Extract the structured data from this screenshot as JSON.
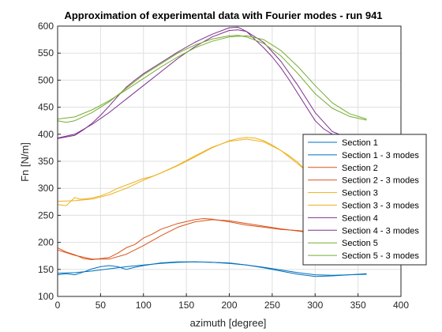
{
  "chart_data": {
    "type": "line",
    "title": "Approximation of experimental data with Fourier modes - run 941",
    "xlabel": "azimuth [degree]",
    "ylabel": "Fn [N/m]",
    "xlim": [
      0,
      400
    ],
    "ylim": [
      100,
      600
    ],
    "xticks": [
      0,
      50,
      100,
      150,
      200,
      250,
      300,
      350,
      400
    ],
    "yticks": [
      100,
      150,
      200,
      250,
      300,
      350,
      400,
      450,
      500,
      550,
      600
    ],
    "grid": true,
    "legend_position": "right",
    "series": [
      {
        "name": "Section 1",
        "color": "#0072BD",
        "x": [
          0,
          10,
          20,
          30,
          40,
          50,
          60,
          70,
          80,
          90,
          100,
          120,
          140,
          160,
          180,
          200,
          220,
          240,
          260,
          280,
          300,
          320,
          340,
          360
        ],
        "y": [
          140,
          142,
          140,
          145,
          151,
          155,
          157,
          155,
          150,
          154,
          157,
          162,
          164,
          164,
          163,
          162,
          158,
          153,
          147,
          141,
          137,
          138,
          140,
          141
        ]
      },
      {
        "name": "Section 1 - 3 modes",
        "color": "#0072BD",
        "x": [
          0,
          20,
          40,
          60,
          80,
          100,
          120,
          140,
          160,
          180,
          200,
          220,
          240,
          260,
          280,
          300,
          320,
          340,
          360
        ],
        "y": [
          143,
          144,
          147,
          151,
          155,
          158,
          161,
          163,
          164,
          163,
          161,
          158,
          154,
          149,
          144,
          140,
          139,
          140,
          142
        ]
      },
      {
        "name": "Section 2",
        "color": "#D95319",
        "x": [
          0,
          10,
          20,
          30,
          40,
          50,
          60,
          70,
          80,
          90,
          100,
          110,
          120,
          140,
          160,
          170,
          180,
          200,
          220,
          240,
          260,
          280,
          300,
          320,
          340,
          360
        ],
        "y": [
          190,
          182,
          177,
          170,
          168,
          170,
          172,
          180,
          190,
          196,
          208,
          215,
          224,
          235,
          242,
          244,
          243,
          238,
          232,
          228,
          224,
          222,
          218,
          214,
          212,
          210
        ]
      },
      {
        "name": "Section 2 - 3 modes",
        "color": "#D95319",
        "x": [
          0,
          20,
          40,
          60,
          80,
          100,
          120,
          140,
          160,
          180,
          200,
          220,
          240,
          260,
          280,
          300,
          320,
          340,
          360
        ],
        "y": [
          186,
          176,
          169,
          169,
          178,
          194,
          212,
          228,
          238,
          242,
          240,
          235,
          230,
          225,
          221,
          216,
          210,
          205,
          203
        ]
      },
      {
        "name": "Section 3",
        "color": "#EDB120",
        "x": [
          0,
          10,
          20,
          25,
          30,
          40,
          50,
          60,
          70,
          80,
          90,
          100,
          110,
          120,
          140,
          160,
          180,
          200,
          210,
          220,
          230,
          240,
          250,
          260,
          270,
          280,
          290,
          300
        ],
        "y": [
          270,
          268,
          283,
          280,
          280,
          282,
          286,
          292,
          300,
          306,
          312,
          318,
          322,
          328,
          342,
          358,
          375,
          388,
          392,
          394,
          393,
          388,
          380,
          370,
          360,
          348,
          332,
          316
        ]
      },
      {
        "name": "Section 3 - 3 modes",
        "color": "#EDB120",
        "x": [
          0,
          20,
          40,
          60,
          80,
          100,
          120,
          140,
          160,
          180,
          200,
          220,
          240,
          260,
          280,
          300
        ],
        "y": [
          276,
          277,
          280,
          288,
          300,
          315,
          328,
          343,
          360,
          376,
          387,
          391,
          386,
          370,
          345,
          318
        ]
      },
      {
        "name": "Section 4",
        "color": "#7E2F8E",
        "x": [
          0,
          10,
          20,
          30,
          40,
          50,
          60,
          70,
          80,
          90,
          100,
          120,
          140,
          160,
          180,
          200,
          210,
          220,
          230,
          240,
          250,
          260,
          270,
          280,
          290,
          300,
          310,
          320,
          330,
          340
        ],
        "y": [
          392,
          395,
          398,
          408,
          420,
          435,
          452,
          470,
          487,
          500,
          512,
          532,
          552,
          570,
          585,
          597,
          598,
          590,
          575,
          560,
          543,
          523,
          500,
          475,
          450,
          425,
          410,
          400,
          392,
          388
        ]
      },
      {
        "name": "Section 4 - 3 modes",
        "color": "#7E2F8E",
        "x": [
          0,
          20,
          40,
          60,
          80,
          100,
          120,
          140,
          160,
          180,
          200,
          210,
          220,
          240,
          260,
          280,
          300,
          320,
          340
        ],
        "y": [
          393,
          400,
          418,
          440,
          465,
          490,
          515,
          540,
          562,
          580,
          592,
          593,
          590,
          570,
          535,
          490,
          440,
          405,
          392
        ]
      },
      {
        "name": "Section 5",
        "color": "#77AC30",
        "x": [
          0,
          10,
          20,
          40,
          60,
          80,
          100,
          120,
          140,
          160,
          180,
          200,
          210,
          220,
          240,
          260,
          280,
          300,
          320,
          340,
          360
        ],
        "y": [
          425,
          422,
          425,
          440,
          460,
          485,
          510,
          530,
          550,
          565,
          576,
          582,
          583,
          580,
          568,
          545,
          512,
          475,
          448,
          433,
          426
        ]
      },
      {
        "name": "Section 5 - 3 modes",
        "color": "#77AC30",
        "x": [
          0,
          20,
          40,
          60,
          80,
          100,
          120,
          140,
          160,
          180,
          200,
          220,
          240,
          260,
          280,
          300,
          320,
          340,
          360
        ],
        "y": [
          428,
          432,
          445,
          462,
          482,
          503,
          524,
          543,
          560,
          572,
          580,
          582,
          575,
          555,
          525,
          490,
          458,
          438,
          428
        ]
      }
    ]
  }
}
